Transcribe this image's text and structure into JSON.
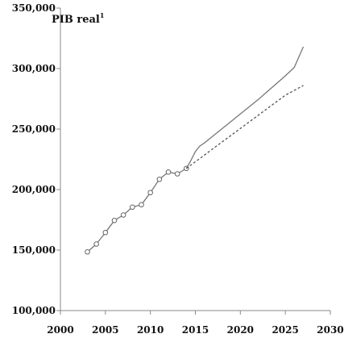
{
  "chart_data": {
    "type": "line",
    "title": "PIB real",
    "title_superscript": "1",
    "xlabel": "",
    "ylabel": "",
    "xlim": [
      2000,
      2030
    ],
    "ylim": [
      100000,
      350000
    ],
    "x_ticks": [
      2000,
      2005,
      2010,
      2015,
      2020,
      2025,
      2030
    ],
    "x_tick_labels": [
      "2000",
      "2005",
      "2010",
      "2015",
      "2020",
      "2025",
      "2030"
    ],
    "y_ticks": [
      100000,
      150000,
      200000,
      250000,
      300000,
      350000
    ],
    "y_tick_labels": [
      "100,000",
      "150,000",
      "200,000",
      "250,000",
      "300,000",
      "350,000"
    ],
    "grid": false,
    "legend": "none",
    "series": [
      {
        "style": "solid-with-circle-markers",
        "color": "#777777",
        "x": [
          2003,
          2004,
          2005,
          2006,
          2007,
          2008,
          2009,
          2010,
          2011,
          2012,
          2013,
          2014
        ],
        "y": [
          148500,
          155000,
          164500,
          174500,
          179000,
          185500,
          187500,
          197500,
          208500,
          214500,
          213000,
          217500
        ]
      },
      {
        "style": "solid",
        "color": "#777777",
        "x": [
          2014,
          2014.5,
          2015,
          2015.5,
          2016,
          2017,
          2018,
          2019,
          2020,
          2021,
          2022,
          2023,
          2024,
          2025,
          2026,
          2027
        ],
        "y": [
          217500,
          224000,
          231500,
          236000,
          238500,
          244500,
          250500,
          256500,
          262500,
          268500,
          274500,
          281000,
          287500,
          294000,
          301000,
          318000
        ]
      },
      {
        "style": "dashed",
        "color": "#555555",
        "x": [
          2014,
          2015,
          2016,
          2017,
          2018,
          2019,
          2020,
          2021,
          2022,
          2023,
          2024,
          2025,
          2026,
          2027
        ],
        "y": [
          217500,
          223000,
          228500,
          234000,
          239500,
          245000,
          250500,
          256000,
          261500,
          267000,
          272500,
          278000,
          282000,
          286000
        ]
      }
    ]
  }
}
